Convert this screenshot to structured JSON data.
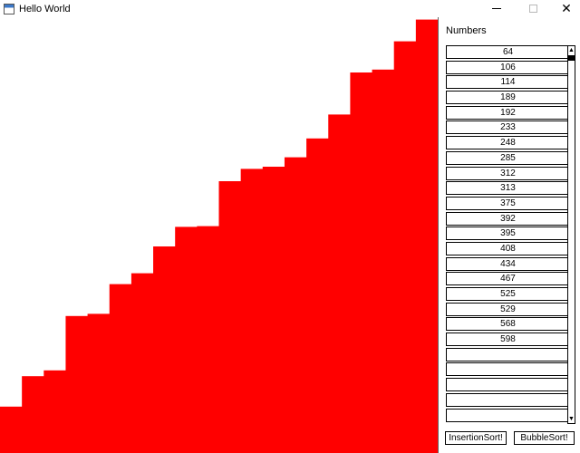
{
  "window": {
    "title": "Hello World",
    "app_icon": "window-app-icon",
    "controls": [
      "minimize-icon",
      "maximize-icon",
      "close-icon"
    ],
    "close_glyph": "✕"
  },
  "panel": {
    "title": "Numbers",
    "values": [
      "64",
      "106",
      "114",
      "189",
      "192",
      "233",
      "248",
      "285",
      "312",
      "313",
      "375",
      "392",
      "395",
      "408",
      "434",
      "467",
      "525",
      "529",
      "568",
      "598",
      "",
      "",
      "",
      "",
      ""
    ],
    "insertion_label": "InsertionSort!",
    "bubble_label": "BubbleSort!"
  },
  "chart_data": {
    "type": "bar",
    "values": [
      64,
      106,
      114,
      189,
      192,
      233,
      248,
      285,
      312,
      313,
      375,
      392,
      395,
      408,
      434,
      467,
      525,
      529,
      568,
      598
    ],
    "bar_color": "#ff0000",
    "ylim": [
      0,
      600
    ]
  }
}
